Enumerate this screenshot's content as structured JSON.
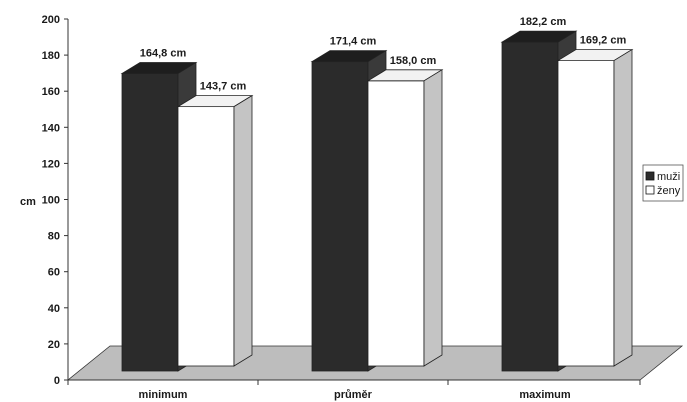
{
  "chart_data": {
    "type": "bar",
    "categories": [
      "minimum",
      "průměr",
      "maximum"
    ],
    "series": [
      {
        "name": "muži",
        "values": [
          164.8,
          171.4,
          182.2
        ],
        "labels": [
          "164,8 cm",
          "171,4 cm",
          "182,2 cm"
        ],
        "color": "#2b2b2b"
      },
      {
        "name": "ženy",
        "values": [
          143.7,
          158.0,
          169.2
        ],
        "labels": [
          "143,7 cm",
          "158,0 cm",
          "169,2 cm"
        ],
        "color": "#ffffff"
      }
    ],
    "ylabel": "cm",
    "ylim": [
      0,
      200
    ],
    "yticks": [
      0,
      20,
      40,
      60,
      80,
      100,
      120,
      140,
      160,
      180,
      200
    ],
    "legend_position": "right",
    "style": "3d",
    "floor_color": "#bdbdbd",
    "side_color": "#c4c4c4"
  }
}
